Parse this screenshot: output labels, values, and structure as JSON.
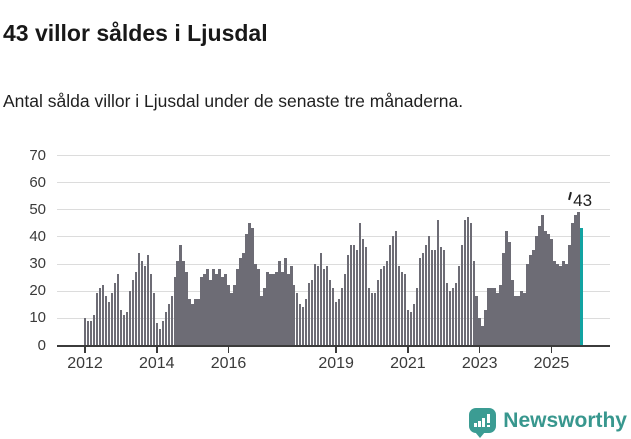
{
  "header": {
    "title": "43 villor såldes i Ljusdal",
    "subtitle": "Antal sålda villor i Ljusdal under de senaste tre månaderna."
  },
  "chart_data": {
    "type": "bar",
    "title": "43 villor såldes i Ljusdal",
    "subtitle": "Antal sålda villor i Ljusdal under de senaste tre månaderna.",
    "ylabel": "",
    "xlabel": "",
    "ylim": [
      0,
      70
    ],
    "yticks": [
      0,
      10,
      20,
      30,
      40,
      50,
      60,
      70
    ],
    "grid": "horizontal",
    "legend": "none",
    "xtick_labels": [
      "2012",
      "2014",
      "2016",
      "2019",
      "2021",
      "2023",
      "2025"
    ],
    "x_start_month": "2012-01",
    "x_end_month": "2025-11",
    "frequency": "monthly",
    "bar_color": "#6d6c75",
    "highlight_color": "#12a3a2",
    "highlighted_month": "2025-11",
    "annotation": {
      "text": "43"
    },
    "series": [
      {
        "name": "Antal sålda villor, rullande tre månader",
        "values": [
          10,
          9,
          9,
          11,
          19,
          21,
          22,
          18,
          16,
          19,
          23,
          26,
          13,
          11,
          12,
          20,
          24,
          27,
          34,
          31,
          29,
          33,
          26,
          19,
          8,
          6,
          9,
          12,
          15,
          18,
          25,
          31,
          37,
          31,
          27,
          17,
          15,
          17,
          17,
          25,
          26,
          28,
          24,
          28,
          26,
          28,
          25,
          26,
          22,
          19,
          22,
          28,
          32,
          34,
          41,
          45,
          43,
          30,
          28,
          18,
          21,
          27,
          26,
          26,
          27,
          31,
          27,
          32,
          26,
          29,
          22,
          19,
          15,
          14,
          17,
          23,
          24,
          30,
          29,
          34,
          28,
          29,
          24,
          21,
          16,
          17,
          21,
          26,
          33,
          37,
          37,
          35,
          45,
          39,
          36,
          21,
          19,
          19,
          24,
          28,
          29,
          31,
          37,
          40,
          42,
          29,
          27,
          26,
          13,
          12,
          15,
          21,
          32,
          34,
          37,
          40,
          35,
          35,
          46,
          36,
          35,
          23,
          20,
          21,
          23,
          29,
          37,
          46,
          47,
          45,
          31,
          18,
          10,
          7,
          13,
          21,
          21,
          21,
          19,
          22,
          34,
          42,
          38,
          24,
          18,
          18,
          20,
          19,
          30,
          33,
          35,
          40,
          44,
          48,
          42,
          41,
          39,
          31,
          30,
          29,
          31,
          30,
          37,
          45,
          48,
          49,
          43
        ]
      }
    ]
  },
  "footer": {
    "brand": "Newsworthy"
  }
}
